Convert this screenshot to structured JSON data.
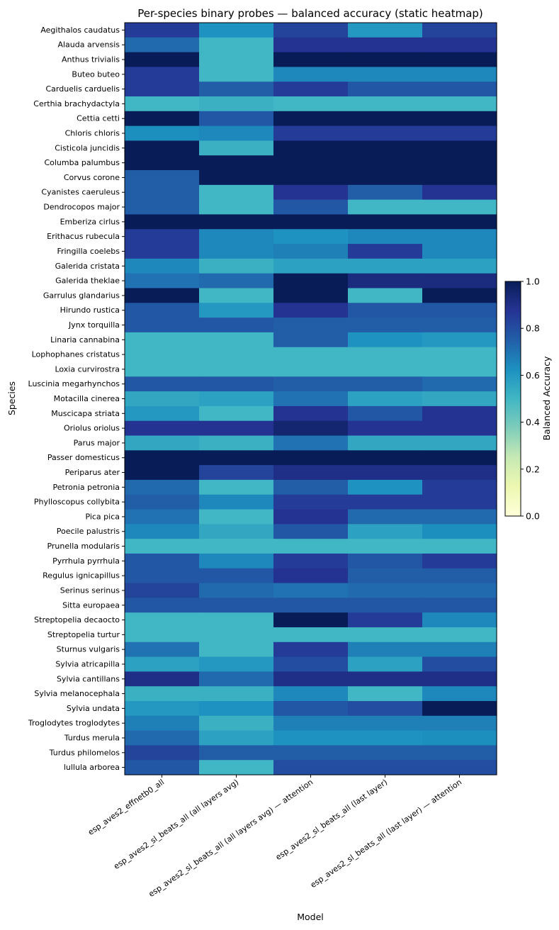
{
  "chart_data": {
    "type": "heatmap",
    "title": "Per-species binary probes — balanced accuracy (static heatmap)",
    "xlabel": "Model",
    "ylabel": "Species",
    "colorbar_label": "Balanced Accuracy",
    "colorscale": "YlGnBu",
    "vmin": 0,
    "vmax": 1,
    "colorbar_ticks": [
      "0.0",
      "0.2",
      "0.4",
      "0.6",
      "0.8",
      "1.0"
    ],
    "models": [
      "esp_aves2_effnetb0_all",
      "esp_aves2_sl_beats_all (all layers avg)",
      "esp_aves2_sl_beats_all (all layers avg) — attention",
      "esp_aves2_sl_beats_all (last layer)",
      "esp_aves2_sl_beats_all (last layer) — attention"
    ],
    "species": [
      "Aegithalos caudatus",
      "Alauda arvensis",
      "Anthus trivialis",
      "Buteo buteo",
      "Carduelis carduelis",
      "Certhia brachydactyla",
      "Cettia cetti",
      "Chloris chloris",
      "Cisticola juncidis",
      "Columba palumbus",
      "Corvus corone",
      "Cyanistes caeruleus",
      "Dendrocopos major",
      "Emberiza cirlus",
      "Erithacus rubecula",
      "Fringilla coelebs",
      "Galerida cristata",
      "Galerida theklae",
      "Garrulus glandarius",
      "Hirundo rustica",
      "Jynx torquilla",
      "Linaria cannabina",
      "Lophophanes cristatus",
      "Loxia curvirostra",
      "Luscinia megarhynchos",
      "Motacilla cinerea",
      "Muscicapa striata",
      "Oriolus oriolus",
      "Parus major",
      "Passer domesticus",
      "Periparus ater",
      "Petronia petronia",
      "Phylloscopus collybita",
      "Pica pica",
      "Poecile palustris",
      "Prunella modularis",
      "Pyrrhula pyrrhula",
      "Regulus ignicapillus",
      "Serinus serinus",
      "Sitta europaea",
      "Streptopelia decaocto",
      "Streptopelia turtur",
      "Sturnus vulgaris",
      "Sylvia atricapilla",
      "Sylvia cantillans",
      "Sylvia melanocephala",
      "Sylvia undata",
      "Troglodytes troglodytes",
      "Turdus merula",
      "Turdus philomelos",
      "lullula arborea"
    ],
    "values": [
      [
        0.85,
        0.62,
        0.83,
        0.6,
        0.83
      ],
      [
        0.72,
        0.5,
        0.88,
        0.88,
        0.88
      ],
      [
        1.0,
        0.5,
        1.0,
        1.0,
        1.0
      ],
      [
        0.85,
        0.5,
        0.65,
        0.65,
        0.65
      ],
      [
        0.85,
        0.75,
        0.85,
        0.77,
        0.77
      ],
      [
        0.5,
        0.52,
        0.5,
        0.5,
        0.5
      ],
      [
        1.0,
        0.77,
        1.0,
        1.0,
        1.0
      ],
      [
        0.63,
        0.65,
        0.85,
        0.85,
        0.85
      ],
      [
        1.0,
        0.52,
        1.0,
        1.0,
        1.0
      ],
      [
        1.0,
        1.0,
        1.0,
        1.0,
        1.0
      ],
      [
        0.75,
        1.0,
        1.0,
        1.0,
        1.0
      ],
      [
        0.75,
        0.5,
        0.88,
        0.75,
        0.88
      ],
      [
        0.75,
        0.5,
        0.77,
        0.5,
        0.5
      ],
      [
        1.0,
        1.0,
        1.0,
        1.0,
        1.0
      ],
      [
        0.85,
        0.65,
        0.62,
        0.65,
        0.65
      ],
      [
        0.85,
        0.65,
        0.67,
        0.85,
        0.65
      ],
      [
        0.65,
        0.52,
        0.57,
        0.57,
        0.57
      ],
      [
        0.7,
        0.72,
        1.0,
        0.92,
        0.92
      ],
      [
        1.0,
        0.5,
        1.0,
        0.5,
        1.0
      ],
      [
        0.77,
        0.6,
        0.88,
        0.77,
        0.77
      ],
      [
        0.77,
        0.77,
        0.75,
        0.75,
        0.75
      ],
      [
        0.5,
        0.5,
        0.75,
        0.62,
        0.6
      ],
      [
        0.5,
        0.5,
        0.5,
        0.5,
        0.5
      ],
      [
        0.5,
        0.5,
        0.5,
        0.5,
        0.5
      ],
      [
        0.77,
        0.77,
        0.75,
        0.75,
        0.72
      ],
      [
        0.55,
        0.57,
        0.7,
        0.57,
        0.55
      ],
      [
        0.6,
        0.5,
        0.88,
        0.77,
        0.88
      ],
      [
        0.88,
        0.88,
        0.95,
        0.88,
        0.88
      ],
      [
        0.55,
        0.52,
        0.7,
        0.55,
        0.55
      ],
      [
        1.0,
        1.0,
        1.0,
        1.0,
        1.0
      ],
      [
        1.0,
        0.83,
        0.9,
        0.9,
        0.9
      ],
      [
        0.72,
        0.5,
        0.75,
        0.62,
        0.85
      ],
      [
        0.75,
        0.65,
        0.85,
        0.85,
        0.85
      ],
      [
        0.7,
        0.5,
        0.88,
        0.72,
        0.72
      ],
      [
        0.65,
        0.55,
        0.77,
        0.57,
        0.63
      ],
      [
        0.5,
        0.5,
        0.5,
        0.5,
        0.5
      ],
      [
        0.77,
        0.65,
        0.85,
        0.77,
        0.85
      ],
      [
        0.77,
        0.77,
        0.88,
        0.75,
        0.75
      ],
      [
        0.83,
        0.72,
        0.7,
        0.72,
        0.72
      ],
      [
        0.77,
        0.77,
        0.77,
        0.77,
        0.77
      ],
      [
        0.5,
        0.5,
        1.0,
        0.85,
        0.65
      ],
      [
        0.5,
        0.5,
        0.5,
        0.5,
        0.5
      ],
      [
        0.7,
        0.5,
        0.85,
        0.67,
        0.67
      ],
      [
        0.57,
        0.6,
        0.8,
        0.57,
        0.8
      ],
      [
        0.9,
        0.72,
        0.9,
        0.9,
        0.9
      ],
      [
        0.52,
        0.52,
        0.65,
        0.5,
        0.65
      ],
      [
        0.6,
        0.62,
        0.77,
        0.8,
        1.0
      ],
      [
        0.67,
        0.52,
        0.67,
        0.67,
        0.67
      ],
      [
        0.72,
        0.57,
        0.62,
        0.62,
        0.63
      ],
      [
        0.83,
        0.75,
        0.75,
        0.75,
        0.75
      ],
      [
        0.77,
        0.5,
        0.8,
        0.8,
        0.8
      ]
    ]
  }
}
